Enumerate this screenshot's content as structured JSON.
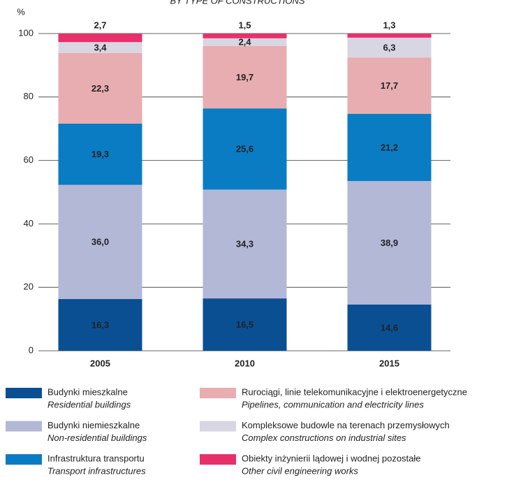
{
  "chart_data": {
    "type": "stacked_bar",
    "subtitle": "BY TYPE OF CONSTRUCTIONS",
    "y_label": "%",
    "categories": [
      "2005",
      "2010",
      "2015"
    ],
    "ylim": [
      0,
      100
    ],
    "yticks": [
      0,
      20,
      40,
      60,
      80,
      100
    ],
    "grid": true,
    "series": [
      {
        "name": "Budynki mieszkalne",
        "name_en": "Residential buildings",
        "color": "#0b4f93",
        "label_color": "#ffffff",
        "values": [
          16.3,
          16.5,
          14.6
        ],
        "value_labels": [
          "16,3",
          "16,5",
          "14,6"
        ]
      },
      {
        "name": "Budynki niemieszkalne",
        "name_en": "Non-residential buildings",
        "color": "#b3b8d6",
        "label_color": "#222222",
        "values": [
          36.0,
          34.3,
          38.9
        ],
        "value_labels": [
          "36,0",
          "34,3",
          "38,9"
        ]
      },
      {
        "name": "Infrastruktura transportu",
        "name_en": "Transport infrastructures",
        "color": "#0a7cc4",
        "label_color": "#ffffff",
        "values": [
          19.3,
          25.6,
          21.2
        ],
        "value_labels": [
          "19,3",
          "25,6",
          "21,2"
        ]
      },
      {
        "name": "Rurociągi, linie telekomunikacyjne i elektroenergetyczne",
        "name_en": "Pipelines, communication and electricity lines",
        "color": "#e8adb0",
        "label_color": "#222222",
        "values": [
          22.3,
          19.7,
          17.7
        ],
        "value_labels": [
          "22,3",
          "19,7",
          "17,7"
        ]
      },
      {
        "name": "Kompleksowe budowle na terenach przemysłowych",
        "name_en": "Complex constructions on industrial sites",
        "color": "#d8d6e3",
        "label_color": "#222222",
        "values": [
          3.4,
          2.4,
          6.3
        ],
        "value_labels": [
          "3,4",
          "2,4",
          "6,3"
        ]
      },
      {
        "name": "Obiekty inżynierii lądowej i wodnej pozostałe",
        "name_en": "Other civil engineering works",
        "color": "#e8306a",
        "label_color": "#222222",
        "values": [
          2.7,
          1.5,
          1.3
        ],
        "value_labels": [
          "2,7",
          "1,5",
          "1,3"
        ]
      }
    ]
  }
}
